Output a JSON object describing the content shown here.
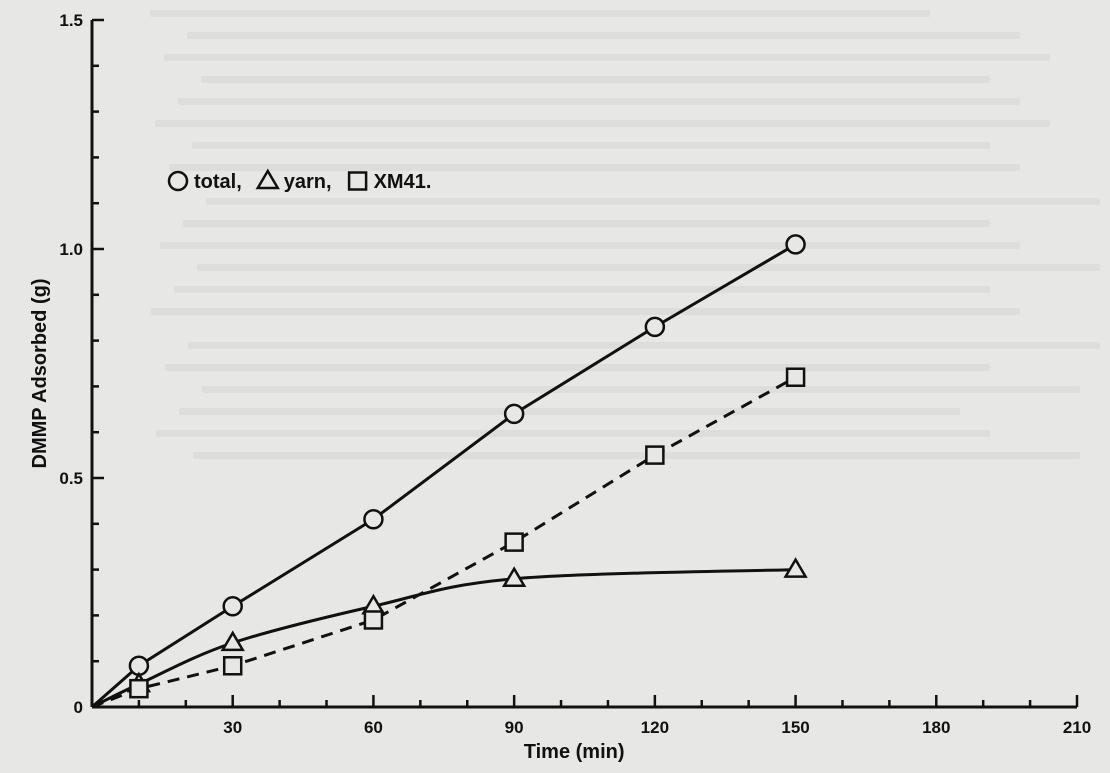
{
  "chart_data": {
    "type": "line",
    "title": "",
    "xlabel": "Time (min)",
    "ylabel": "DMMP Adsorbed (g)",
    "xlim": [
      0,
      210
    ],
    "ylim": [
      0,
      1.5
    ],
    "xticks": [
      30,
      60,
      90,
      120,
      150,
      180,
      210
    ],
    "yticks": [
      {
        "value": 0,
        "label": "0"
      },
      {
        "value": 0.5,
        "label": "0.5"
      },
      {
        "value": 1.0,
        "label": "1.0"
      },
      {
        "value": 1.5,
        "label": "1.5"
      }
    ],
    "grid": false,
    "legend_position": "top-left",
    "series": [
      {
        "name": "total,",
        "marker": "circle",
        "line": "solid",
        "x": [
          10,
          30,
          60,
          90,
          120,
          150
        ],
        "y": [
          0.09,
          0.22,
          0.41,
          0.64,
          0.83,
          1.01
        ]
      },
      {
        "name": "yarn,",
        "marker": "triangle",
        "line": "solid",
        "x": [
          10,
          30,
          60,
          90,
          150
        ],
        "y": [
          0.05,
          0.14,
          0.22,
          0.28,
          0.3
        ]
      },
      {
        "name": "XM41.",
        "marker": "square",
        "line": "dashed",
        "x": [
          10,
          30,
          60,
          90,
          120,
          150
        ],
        "y": [
          0.04,
          0.09,
          0.19,
          0.36,
          0.55,
          0.72
        ]
      }
    ],
    "colors": {
      "ink": "#111111",
      "background": "#e7e7e5"
    }
  }
}
